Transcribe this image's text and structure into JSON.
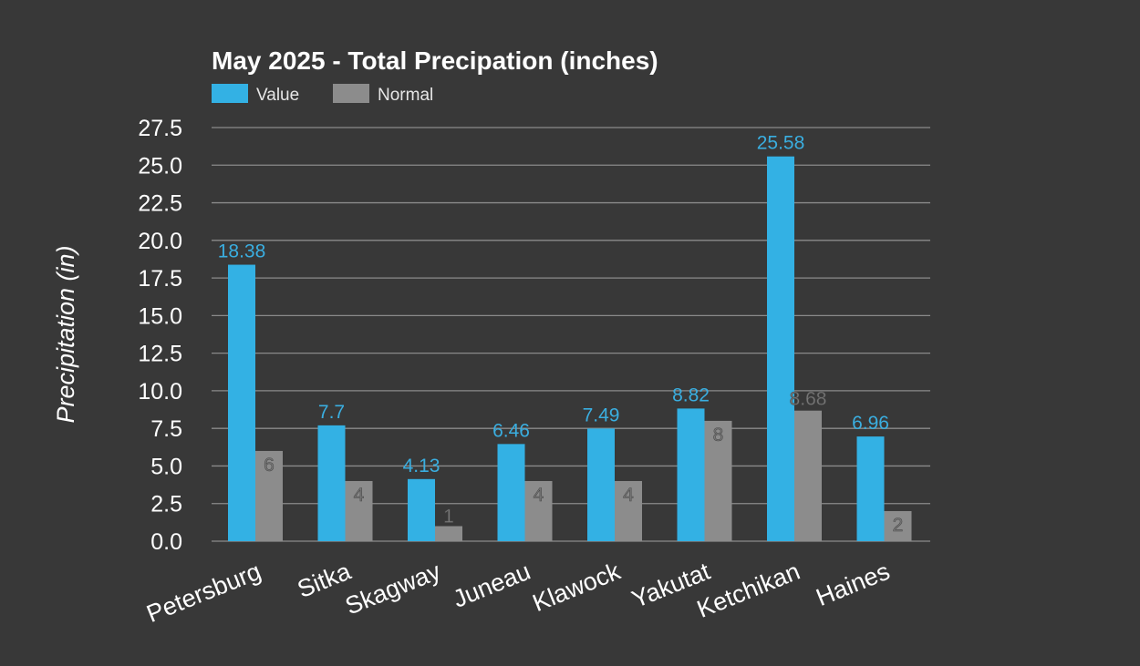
{
  "colors": {
    "background": "#383838",
    "value_series": "#33b1e4",
    "normal_series": "#8c8c8c",
    "grid": "#8a8a8a"
  },
  "chart_data": {
    "type": "bar",
    "title": "May 2025 - Total Precipation (inches)",
    "xlabel": "",
    "ylabel": "Precipitation (in)",
    "ylim": [
      0,
      27.5
    ],
    "yticks": [
      "0.0",
      "2.5",
      "5.0",
      "7.5",
      "10.0",
      "12.5",
      "15.0",
      "17.5",
      "20.0",
      "22.5",
      "25.0",
      "27.5"
    ],
    "ytick_values": [
      0,
      2.5,
      5,
      7.5,
      10,
      12.5,
      15,
      17.5,
      20,
      22.5,
      25,
      27.5
    ],
    "grid": true,
    "legend_position": "top-left",
    "categories": [
      "Petersburg",
      "Sitka",
      "Skagway",
      "Juneau",
      "Klawock",
      "Yakutat",
      "Ketchikan",
      "Haines"
    ],
    "series": [
      {
        "name": "Value",
        "color": "#33b1e4",
        "values": [
          18.38,
          7.7,
          4.13,
          6.46,
          7.49,
          8.82,
          25.58,
          6.96
        ],
        "labels": [
          "18.38",
          "7.7",
          "4.13",
          "6.46",
          "7.49",
          "8.82",
          "25.58",
          "6.96"
        ]
      },
      {
        "name": "Normal",
        "color": "#8c8c8c",
        "values": [
          6,
          4,
          1,
          4,
          4,
          8,
          8.68,
          2
        ],
        "labels": [
          "6",
          "4",
          "1",
          "4",
          "4",
          "8",
          "8.68",
          "2"
        ]
      }
    ]
  }
}
